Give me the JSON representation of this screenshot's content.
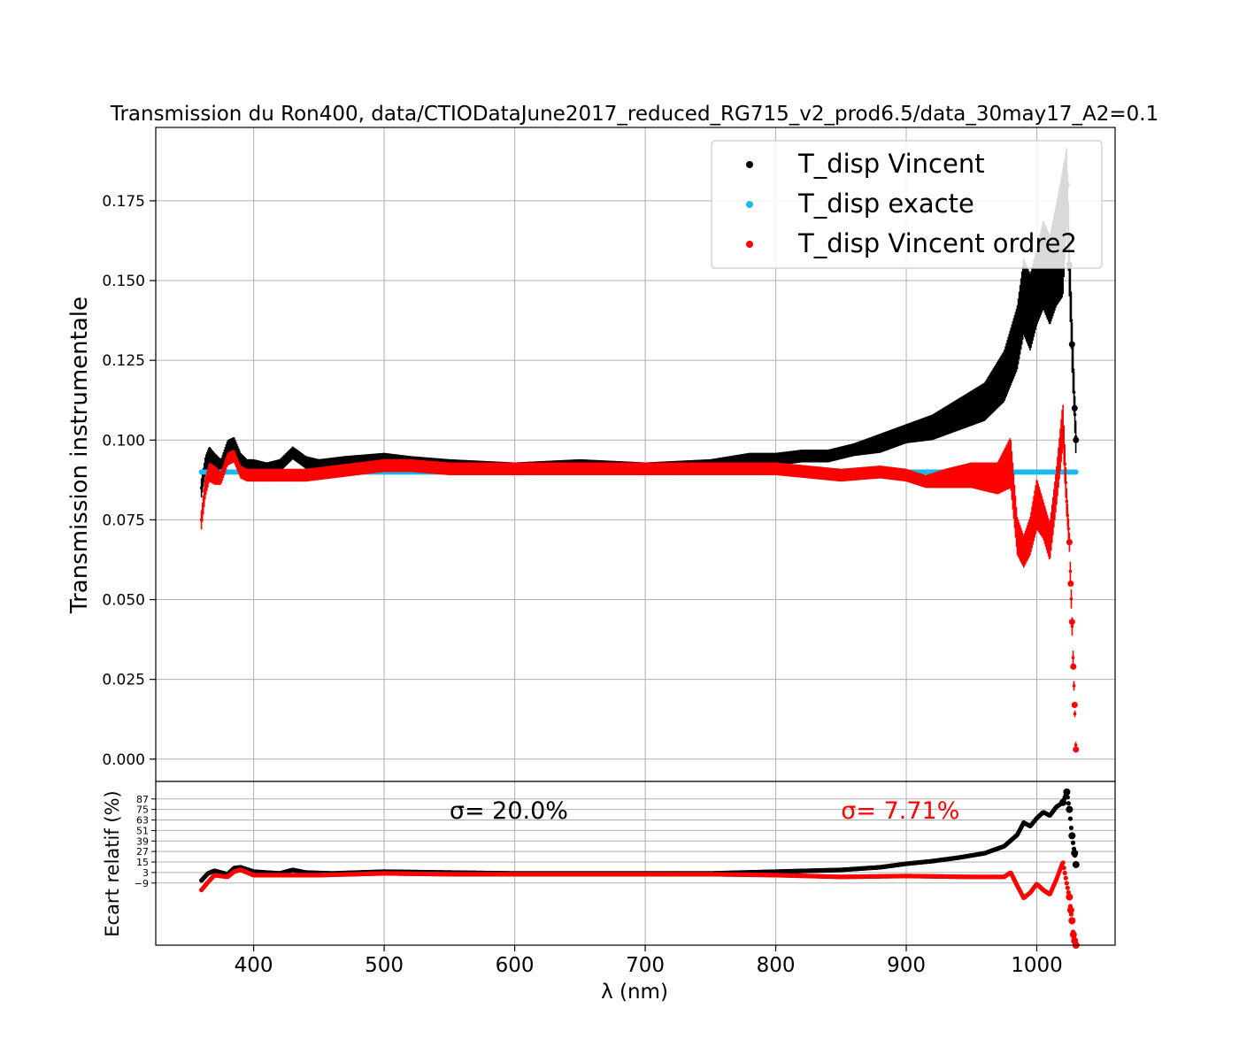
{
  "chart_data": [
    {
      "type": "scatter",
      "title": "Transmission du Ron400, data/CTIODataJune2017_reduced_RG715_v2_prod6.5/data_30may17_A2=0.1",
      "ylabel": "Transmission instrumentale",
      "xlim": [
        325,
        1060
      ],
      "ylim": [
        -0.007,
        0.198
      ],
      "yticks": [
        0.0,
        0.025,
        0.05,
        0.075,
        0.1,
        0.125,
        0.15,
        0.175
      ],
      "ytick_labels": [
        "0.000",
        "0.025",
        "0.050",
        "0.075",
        "0.100",
        "0.125",
        "0.150",
        "0.175"
      ],
      "xticks": [
        400,
        500,
        600,
        700,
        800,
        900,
        1000
      ],
      "grid": true,
      "legend_position": "top-right",
      "series": [
        {
          "name": "T_disp Vincent",
          "color": "#000000",
          "x": [
            360,
            363,
            366,
            370,
            375,
            380,
            385,
            390,
            395,
            400,
            410,
            420,
            430,
            440,
            450,
            470,
            500,
            520,
            550,
            600,
            650,
            700,
            750,
            780,
            800,
            820,
            840,
            860,
            880,
            900,
            920,
            940,
            960,
            975,
            985,
            990,
            995,
            1000,
            1005,
            1010,
            1015,
            1020,
            1023,
            1025,
            1027,
            1029,
            1030
          ],
          "y": [
            0.085,
            0.092,
            0.095,
            0.093,
            0.091,
            0.097,
            0.098,
            0.094,
            0.092,
            0.092,
            0.091,
            0.092,
            0.096,
            0.093,
            0.092,
            0.093,
            0.094,
            0.093,
            0.092,
            0.091,
            0.092,
            0.091,
            0.092,
            0.094,
            0.094,
            0.095,
            0.095,
            0.097,
            0.099,
            0.102,
            0.104,
            0.108,
            0.112,
            0.12,
            0.132,
            0.145,
            0.14,
            0.148,
            0.155,
            0.15,
            0.158,
            0.165,
            0.18,
            0.155,
            0.13,
            0.11,
            0.1
          ],
          "err": [
            0.003,
            0.003,
            0.003,
            0.003,
            0.003,
            0.003,
            0.003,
            0.002,
            0.002,
            0.002,
            0.002,
            0.002,
            0.002,
            0.002,
            0.002,
            0.002,
            0.002,
            0.002,
            0.002,
            0.002,
            0.002,
            0.002,
            0.002,
            0.002,
            0.002,
            0.002,
            0.002,
            0.002,
            0.003,
            0.003,
            0.004,
            0.005,
            0.006,
            0.008,
            0.01,
            0.012,
            0.012,
            0.012,
            0.014,
            0.014,
            0.016,
            0.02,
            0.012,
            0.01,
            0.008,
            0.006,
            0.005
          ]
        },
        {
          "name": "T_disp exacte",
          "color": "#1cb9ec",
          "x": [
            360,
            400,
            500,
            600,
            700,
            800,
            900,
            1000,
            1030
          ],
          "y": [
            0.09,
            0.09,
            0.09,
            0.09,
            0.09,
            0.09,
            0.09,
            0.09,
            0.09
          ],
          "err": [
            0,
            0,
            0,
            0,
            0,
            0,
            0,
            0,
            0
          ]
        },
        {
          "name": "T_disp Vincent ordre2",
          "color": "#ff0000",
          "x": [
            360,
            363,
            366,
            370,
            375,
            380,
            385,
            390,
            395,
            400,
            420,
            440,
            460,
            480,
            500,
            520,
            550,
            600,
            650,
            700,
            750,
            800,
            850,
            880,
            900,
            915,
            930,
            950,
            970,
            980,
            985,
            990,
            995,
            1000,
            1005,
            1010,
            1015,
            1020,
            1023,
            1025,
            1026,
            1027,
            1028,
            1029,
            1030
          ],
          "y": [
            0.075,
            0.085,
            0.09,
            0.089,
            0.088,
            0.094,
            0.095,
            0.09,
            0.089,
            0.089,
            0.089,
            0.089,
            0.09,
            0.091,
            0.092,
            0.092,
            0.091,
            0.091,
            0.091,
            0.091,
            0.091,
            0.091,
            0.089,
            0.09,
            0.089,
            0.087,
            0.088,
            0.089,
            0.088,
            0.093,
            0.07,
            0.065,
            0.07,
            0.08,
            0.075,
            0.068,
            0.085,
            0.105,
            0.08,
            0.068,
            0.055,
            0.043,
            0.029,
            0.017,
            0.003
          ],
          "err": [
            0.003,
            0.003,
            0.003,
            0.003,
            0.002,
            0.002,
            0.002,
            0.002,
            0.002,
            0.002,
            0.002,
            0.002,
            0.002,
            0.002,
            0.002,
            0.002,
            0.002,
            0.002,
            0.002,
            0.002,
            0.002,
            0.002,
            0.002,
            0.002,
            0.002,
            0.002,
            0.003,
            0.004,
            0.005,
            0.008,
            0.006,
            0.005,
            0.006,
            0.008,
            0.006,
            0.006,
            0.006,
            0.007,
            0.004,
            0.003,
            0.003,
            0.003,
            0.002,
            0.001,
            0.001
          ]
        }
      ]
    },
    {
      "type": "scatter",
      "xlabel": "λ (nm)",
      "ylabel": "Ecart relatif (%)",
      "xlim": [
        325,
        1060
      ],
      "ylim": [
        -80,
        107
      ],
      "yticks": [
        -9,
        3,
        15,
        27,
        39,
        51,
        63,
        75,
        87
      ],
      "ytick_labels": [
        "−9",
        "3",
        "15",
        "27",
        "39",
        "51",
        "63",
        "75",
        "87"
      ],
      "xticks": [
        400,
        500,
        600,
        700,
        800,
        900,
        1000
      ],
      "xtick_labels": [
        "400",
        "500",
        "600",
        "700",
        "800",
        "900",
        "1000"
      ],
      "grid": true,
      "annotations": [
        {
          "text": "σ= 20.0%",
          "color": "#000000",
          "x": 550
        },
        {
          "text": "σ= 7.71%",
          "color": "#ff0000",
          "x": 850
        }
      ],
      "series": [
        {
          "color": "#000000",
          "x": [
            360,
            365,
            370,
            375,
            380,
            385,
            390,
            400,
            420,
            430,
            440,
            460,
            500,
            550,
            600,
            650,
            700,
            750,
            800,
            850,
            880,
            900,
            920,
            940,
            960,
            975,
            985,
            990,
            995,
            1000,
            1005,
            1010,
            1015,
            1020,
            1023,
            1025,
            1027,
            1029,
            1030
          ],
          "y": [
            -6,
            2,
            5,
            3,
            1,
            8,
            9,
            4,
            2,
            6,
            3,
            2,
            4,
            3,
            2,
            2,
            2,
            2,
            4,
            6,
            9,
            13,
            16,
            20,
            25,
            33,
            46,
            60,
            56,
            65,
            72,
            68,
            78,
            83,
            95,
            75,
            45,
            25,
            12
          ]
        },
        {
          "color": "#ff0000",
          "x": [
            360,
            365,
            370,
            375,
            380,
            385,
            390,
            400,
            450,
            500,
            550,
            600,
            650,
            700,
            750,
            800,
            850,
            900,
            950,
            975,
            980,
            985,
            990,
            995,
            1000,
            1005,
            1010,
            1015,
            1020,
            1023,
            1025,
            1026,
            1027,
            1028,
            1029,
            1030
          ],
          "y": [
            -17,
            -8,
            0,
            -1,
            -2,
            4,
            6,
            0,
            0,
            2,
            1,
            1,
            1,
            1,
            1,
            0,
            -2,
            -1,
            -2,
            -2,
            3,
            -12,
            -26,
            -20,
            -10,
            -17,
            -22,
            -5,
            15,
            -10,
            -25,
            -40,
            -52,
            -68,
            -75,
            -80
          ]
        }
      ]
    }
  ]
}
